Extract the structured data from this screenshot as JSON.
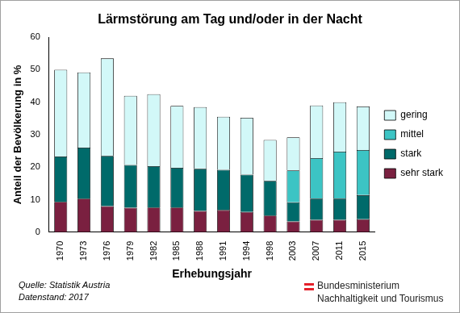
{
  "chart_data": {
    "type": "bar",
    "title": "Lärmstörung am Tag und/oder in der Nacht",
    "x_label": "Erhebungsjahr",
    "y_label": "Anteil der Bevölkerung in %",
    "annotations": [
      "Quelle: Statistik Austria",
      "Datenstand: 2017",
      "Bundesministerium",
      "Nachhaltigkeit und Tourismus"
    ],
    "categories": [
      "1970",
      "1973",
      "1976",
      "1979",
      "1982",
      "1985",
      "1988",
      "1991",
      "1994",
      "1998",
      "2003",
      "2007",
      "2011",
      "2015"
    ],
    "series": [
      {
        "name": "sehr stark",
        "color": "#7a2040",
        "values": [
          9.3,
          10.3,
          8,
          7.5,
          7.6,
          7.6,
          6.5,
          6.8,
          6.2,
          5.1,
          3.3,
          3.8,
          3.8,
          4
        ]
      },
      {
        "name": "stark",
        "color": "#006a6a",
        "values": [
          14,
          15.7,
          15.5,
          13.2,
          12.7,
          12.2,
          13,
          12.4,
          11.5,
          10.7,
          5.9,
          6.5,
          6.5,
          7.4
        ]
      },
      {
        "name": "mittel",
        "color": "#3cc4c4",
        "values": [
          null,
          null,
          null,
          null,
          null,
          null,
          null,
          null,
          null,
          null,
          9.8,
          12.5,
          14.5,
          13.9
        ]
      },
      {
        "name": "gering",
        "color": "#d2f8f8",
        "values": [
          26.7,
          23.2,
          30,
          21.3,
          22.2,
          19.1,
          19,
          16.3,
          17.5,
          12.6,
          10.2,
          16.2,
          15.2,
          13.4
        ]
      }
    ],
    "ylim": [
      0,
      60
    ],
    "yticks": [
      0,
      10,
      20,
      30,
      40,
      50,
      60
    ],
    "stacked": true,
    "grid": false,
    "legend": "right"
  }
}
